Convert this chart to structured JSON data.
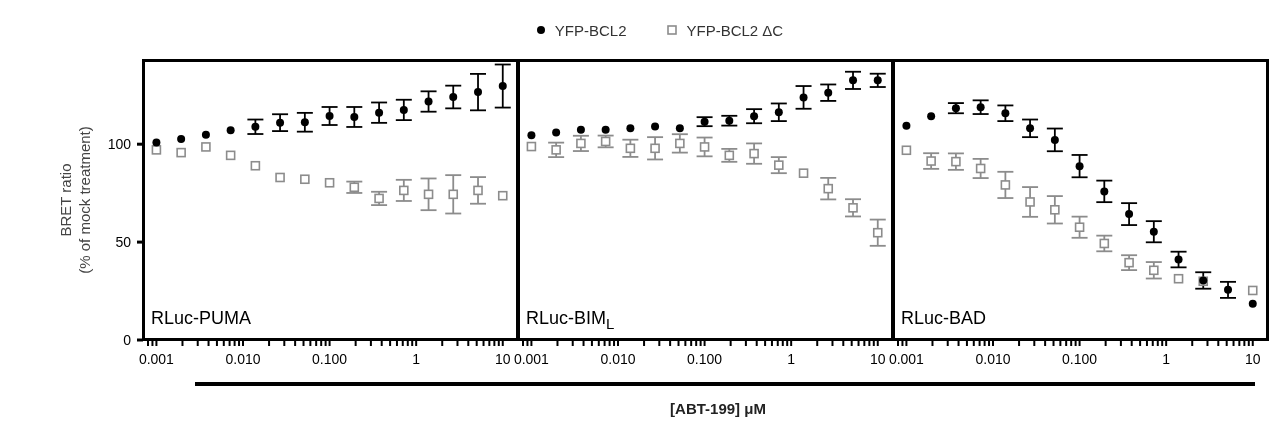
{
  "chart_data": [
    {
      "type": "scatter",
      "title": "RLuc-PUMA",
      "ylabel": "BRET ratio\n(% of mock treatment)",
      "legend": "top",
      "log": "x",
      "x": [
        0.001,
        0.00193,
        0.00373,
        0.0072,
        0.0139,
        0.0268,
        0.0518,
        0.1,
        0.193,
        0.373,
        0.72,
        1.39,
        2.68,
        5.18,
        10
      ],
      "series": [
        {
          "name": "YFP-BCL2",
          "color": "#000000",
          "marker": "circle",
          "values": [
            100.9,
            102.6,
            104.8,
            107.1,
            108.9,
            111,
            111.2,
            114.4,
            113.9,
            116.1,
            117.5,
            121.8,
            124.1,
            126.6,
            129.7
          ],
          "errors": [
            null,
            null,
            null,
            null,
            3.7,
            4.3,
            4.8,
            4.6,
            5.1,
            5.2,
            5.2,
            5.2,
            5.8,
            9.3,
            11
          ]
        },
        {
          "name": "YFP-BCL2 ΔC",
          "color": "#8c8c8c",
          "marker": "square",
          "values": [
            97.1,
            95.7,
            98.6,
            94.3,
            89,
            83,
            82.1,
            80.3,
            78,
            72.3,
            76.4,
            74.4,
            74.4,
            76.4,
            73.7
          ],
          "errors": [
            null,
            null,
            null,
            null,
            null,
            null,
            null,
            null,
            2.9,
            3.4,
            5.4,
            8.1,
            9.8,
            6.8,
            null
          ]
        }
      ],
      "xlim": [
        0.0007,
        15
      ],
      "xticks": [
        {
          "value": 0.0008,
          "label": null
        },
        {
          "value": 0.0009,
          "label": null
        },
        0.001,
        {
          "value": 0.002,
          "label": null
        },
        {
          "value": 0.003,
          "label": null
        },
        {
          "value": 0.004,
          "label": null
        },
        {
          "value": 0.005,
          "label": null
        },
        {
          "value": 0.006,
          "label": null
        },
        {
          "value": 0.007,
          "label": null
        },
        {
          "value": 0.008,
          "label": null
        },
        {
          "value": 0.009,
          "label": null
        },
        {
          "value": 0.01,
          "label": "0.010"
        },
        {
          "value": 0.02,
          "label": null
        },
        {
          "value": 0.03,
          "label": null
        },
        {
          "value": 0.04,
          "label": null
        },
        {
          "value": 0.05,
          "label": null
        },
        {
          "value": 0.06,
          "label": null
        },
        {
          "value": 0.07,
          "label": null
        },
        {
          "value": 0.08,
          "label": null
        },
        {
          "value": 0.09,
          "label": null
        },
        {
          "value": 0.1,
          "label": "0.100"
        },
        {
          "value": 0.2,
          "label": null
        },
        {
          "value": 0.3,
          "label": null
        },
        {
          "value": 0.4,
          "label": null
        },
        {
          "value": 0.5,
          "label": null
        },
        {
          "value": 0.6,
          "label": null
        },
        {
          "value": 0.7,
          "label": null
        },
        {
          "value": 0.8,
          "label": null
        },
        {
          "value": 0.9,
          "label": null
        },
        1,
        {
          "value": 2,
          "label": null
        },
        {
          "value": 3,
          "label": null
        },
        {
          "value": 4,
          "label": null
        },
        {
          "value": 5,
          "label": null
        },
        {
          "value": 6,
          "label": null
        },
        {
          "value": 7,
          "label": null
        },
        {
          "value": 8,
          "label": null
        },
        {
          "value": 9,
          "label": null
        },
        10
      ],
      "ylim": [
        0,
        143
      ],
      "yticks": [
        0,
        50,
        100
      ]
    },
    {
      "type": "scatter",
      "title": "RLuc-BIM$_{L}$",
      "xlabel": "[ABT-199] μM",
      "log": "x",
      "tick_labels": "x",
      "x": [
        0.001,
        0.00193,
        0.00373,
        0.0072,
        0.0139,
        0.0268,
        0.0518,
        0.1,
        0.193,
        0.373,
        0.72,
        1.39,
        2.68,
        5.18,
        10
      ],
      "series": [
        {
          "color": "#000000",
          "marker": "circle",
          "values": [
            104.6,
            106,
            107.4,
            107.4,
            108.2,
            109.1,
            108.2,
            111.5,
            112,
            114.3,
            116.3,
            123.9,
            126.3,
            132.6,
            132.6
          ],
          "errors": [
            null,
            null,
            null,
            null,
            null,
            null,
            null,
            2.3,
            2.5,
            3.6,
            4.5,
            5.8,
            4.2,
            4.4,
            3.4
          ]
        },
        {
          "color": "#8c8c8c",
          "marker": "square",
          "values": [
            98.8,
            97.1,
            100.4,
            101.4,
            97.9,
            97.9,
            100.4,
            98.6,
            94.3,
            95.2,
            89.3,
            85.2,
            77.3,
            67.5,
            54.8
          ],
          "errors": [
            null,
            3.7,
            3.9,
            3,
            4.4,
            5.7,
            4.7,
            4.8,
            3.3,
            5.2,
            4.1,
            null,
            5.5,
            4.4,
            6.7
          ]
        }
      ],
      "xlim": [
        0.0007,
        15
      ],
      "xticks": [
        {
          "value": 0.0008,
          "label": null
        },
        {
          "value": 0.0009,
          "label": null
        },
        0.001,
        {
          "value": 0.002,
          "label": null
        },
        {
          "value": 0.003,
          "label": null
        },
        {
          "value": 0.004,
          "label": null
        },
        {
          "value": 0.005,
          "label": null
        },
        {
          "value": 0.006,
          "label": null
        },
        {
          "value": 0.007,
          "label": null
        },
        {
          "value": 0.008,
          "label": null
        },
        {
          "value": 0.009,
          "label": null
        },
        {
          "value": 0.01,
          "label": "0.010"
        },
        {
          "value": 0.02,
          "label": null
        },
        {
          "value": 0.03,
          "label": null
        },
        {
          "value": 0.04,
          "label": null
        },
        {
          "value": 0.05,
          "label": null
        },
        {
          "value": 0.06,
          "label": null
        },
        {
          "value": 0.07,
          "label": null
        },
        {
          "value": 0.08,
          "label": null
        },
        {
          "value": 0.09,
          "label": null
        },
        {
          "value": 0.1,
          "label": "0.100"
        },
        {
          "value": 0.2,
          "label": null
        },
        {
          "value": 0.3,
          "label": null
        },
        {
          "value": 0.4,
          "label": null
        },
        {
          "value": 0.5,
          "label": null
        },
        {
          "value": 0.6,
          "label": null
        },
        {
          "value": 0.7,
          "label": null
        },
        {
          "value": 0.8,
          "label": null
        },
        {
          "value": 0.9,
          "label": null
        },
        1,
        {
          "value": 2,
          "label": null
        },
        {
          "value": 3,
          "label": null
        },
        {
          "value": 4,
          "label": null
        },
        {
          "value": 5,
          "label": null
        },
        {
          "value": 6,
          "label": null
        },
        {
          "value": 7,
          "label": null
        },
        {
          "value": 8,
          "label": null
        },
        {
          "value": 9,
          "label": null
        },
        10
      ],
      "ylim": [
        0,
        143
      ]
    },
    {
      "type": "scatter",
      "title": "RLuc-BAD",
      "log": "x",
      "tick_labels": "x",
      "x": [
        0.001,
        0.00193,
        0.00373,
        0.0072,
        0.0139,
        0.0268,
        0.0518,
        0.1,
        0.193,
        0.373,
        0.72,
        1.39,
        2.68,
        5.18,
        10
      ],
      "series": [
        {
          "color": "#000000",
          "marker": "circle",
          "values": [
            109.4,
            114.3,
            118.4,
            118.9,
            115.8,
            108.1,
            102.2,
            88.8,
            75.9,
            64.3,
            55.3,
            41.1,
            30.4,
            25.6,
            18.5
          ],
          "errors": [
            null,
            null,
            2.6,
            3.5,
            4,
            4.5,
            5.8,
            5.7,
            5.5,
            5.6,
            5.4,
            4,
            4.2,
            4.1,
            null
          ]
        },
        {
          "color": "#8c8c8c",
          "marker": "square",
          "values": [
            96.9,
            91.4,
            91.1,
            87.6,
            79.2,
            70.5,
            66.5,
            57.6,
            49.3,
            39.5,
            35.6,
            31.3,
            30,
            null,
            25.3
          ],
          "errors": [
            null,
            4,
            4.2,
            4.9,
            6.7,
            7.6,
            7,
            5.4,
            4,
            3.8,
            4.2,
            null,
            null,
            null,
            null
          ]
        }
      ],
      "xlim": [
        0.0007,
        15
      ],
      "xticks": [
        {
          "value": 0.0008,
          "label": null
        },
        {
          "value": 0.0009,
          "label": null
        },
        0.001,
        {
          "value": 0.002,
          "label": null
        },
        {
          "value": 0.003,
          "label": null
        },
        {
          "value": 0.004,
          "label": null
        },
        {
          "value": 0.005,
          "label": null
        },
        {
          "value": 0.006,
          "label": null
        },
        {
          "value": 0.007,
          "label": null
        },
        {
          "value": 0.008,
          "label": null
        },
        {
          "value": 0.009,
          "label": null
        },
        {
          "value": 0.01,
          "label": "0.010"
        },
        {
          "value": 0.02,
          "label": null
        },
        {
          "value": 0.03,
          "label": null
        },
        {
          "value": 0.04,
          "label": null
        },
        {
          "value": 0.05,
          "label": null
        },
        {
          "value": 0.06,
          "label": null
        },
        {
          "value": 0.07,
          "label": null
        },
        {
          "value": 0.08,
          "label": null
        },
        {
          "value": 0.09,
          "label": null
        },
        {
          "value": 0.1,
          "label": "0.100"
        },
        {
          "value": 0.2,
          "label": null
        },
        {
          "value": 0.3,
          "label": null
        },
        {
          "value": 0.4,
          "label": null
        },
        {
          "value": 0.5,
          "label": null
        },
        {
          "value": 0.6,
          "label": null
        },
        {
          "value": 0.7,
          "label": null
        },
        {
          "value": 0.8,
          "label": null
        },
        {
          "value": 0.9,
          "label": null
        },
        1,
        {
          "value": 2,
          "label": null
        },
        {
          "value": 3,
          "label": null
        },
        {
          "value": 4,
          "label": null
        },
        {
          "value": 5,
          "label": null
        },
        {
          "value": 6,
          "label": null
        },
        {
          "value": 7,
          "label": null
        },
        {
          "value": 8,
          "label": null
        },
        {
          "value": 9,
          "label": null
        },
        10
      ],
      "ylim": [
        0,
        143
      ]
    }
  ]
}
